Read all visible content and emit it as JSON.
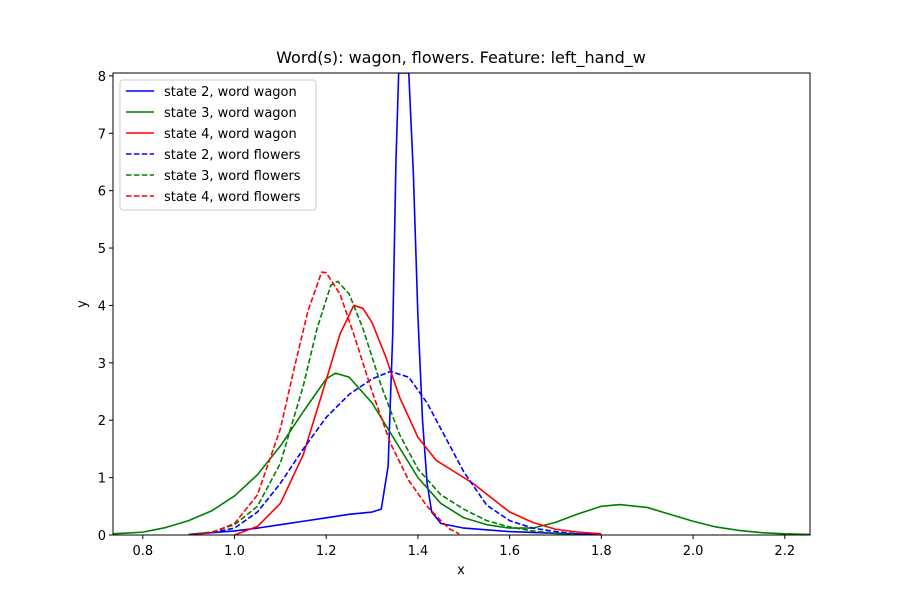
{
  "chart_data": {
    "type": "line",
    "title": "Word(s): wagon, flowers. Feature: left_hand_w",
    "xlabel": "x",
    "ylabel": "y",
    "xlim": [
      0.735,
      2.255
    ],
    "ylim": [
      0,
      8.05
    ],
    "xticks": [
      "0.8",
      "1.0",
      "1.2",
      "1.4",
      "1.6",
      "1.8",
      "2.0",
      "2.2"
    ],
    "yticks": [
      "0",
      "1",
      "2",
      "3",
      "4",
      "5",
      "6",
      "7",
      "8"
    ],
    "grid": false,
    "legend_position": "top-left",
    "series": [
      {
        "name": "state 2, word wagon",
        "color": "#0000ff",
        "style": "solid",
        "points": [
          [
            0.9,
            0.01
          ],
          [
            1.0,
            0.07
          ],
          [
            1.05,
            0.12
          ],
          [
            1.1,
            0.18
          ],
          [
            1.15,
            0.24
          ],
          [
            1.2,
            0.3
          ],
          [
            1.25,
            0.36
          ],
          [
            1.3,
            0.4
          ],
          [
            1.32,
            0.45
          ],
          [
            1.335,
            1.2
          ],
          [
            1.345,
            3.5
          ],
          [
            1.352,
            6.5
          ],
          [
            1.358,
            8.05
          ],
          [
            1.38,
            8.05
          ],
          [
            1.39,
            6.3
          ],
          [
            1.4,
            3.8
          ],
          [
            1.41,
            2.0
          ],
          [
            1.42,
            0.9
          ],
          [
            1.43,
            0.4
          ],
          [
            1.45,
            0.2
          ],
          [
            1.5,
            0.12
          ],
          [
            1.6,
            0.06
          ],
          [
            1.7,
            0.03
          ],
          [
            1.79,
            0.01
          ]
        ]
      },
      {
        "name": "state 3, word wagon",
        "color": "#008000",
        "style": "solid",
        "points": [
          [
            0.735,
            0.02
          ],
          [
            0.8,
            0.05
          ],
          [
            0.85,
            0.13
          ],
          [
            0.9,
            0.25
          ],
          [
            0.95,
            0.42
          ],
          [
            1.0,
            0.68
          ],
          [
            1.05,
            1.05
          ],
          [
            1.1,
            1.55
          ],
          [
            1.15,
            2.15
          ],
          [
            1.2,
            2.72
          ],
          [
            1.22,
            2.82
          ],
          [
            1.25,
            2.75
          ],
          [
            1.3,
            2.3
          ],
          [
            1.35,
            1.65
          ],
          [
            1.4,
            1.0
          ],
          [
            1.45,
            0.55
          ],
          [
            1.5,
            0.3
          ],
          [
            1.55,
            0.18
          ],
          [
            1.6,
            0.12
          ],
          [
            1.65,
            0.12
          ],
          [
            1.7,
            0.22
          ],
          [
            1.75,
            0.37
          ],
          [
            1.8,
            0.5
          ],
          [
            1.84,
            0.53
          ],
          [
            1.9,
            0.48
          ],
          [
            1.95,
            0.36
          ],
          [
            2.0,
            0.24
          ],
          [
            2.05,
            0.14
          ],
          [
            2.1,
            0.08
          ],
          [
            2.15,
            0.04
          ],
          [
            2.2,
            0.02
          ],
          [
            2.255,
            0.01
          ]
        ]
      },
      {
        "name": "state 4, word wagon",
        "color": "#ff0000",
        "style": "solid",
        "points": [
          [
            1.0,
            0.0
          ],
          [
            1.05,
            0.15
          ],
          [
            1.1,
            0.55
          ],
          [
            1.15,
            1.4
          ],
          [
            1.2,
            2.7
          ],
          [
            1.23,
            3.5
          ],
          [
            1.26,
            4.0
          ],
          [
            1.28,
            3.95
          ],
          [
            1.3,
            3.7
          ],
          [
            1.33,
            3.1
          ],
          [
            1.36,
            2.4
          ],
          [
            1.4,
            1.7
          ],
          [
            1.44,
            1.3
          ],
          [
            1.48,
            1.1
          ],
          [
            1.52,
            0.9
          ],
          [
            1.56,
            0.65
          ],
          [
            1.6,
            0.4
          ],
          [
            1.65,
            0.22
          ],
          [
            1.7,
            0.1
          ],
          [
            1.75,
            0.05
          ],
          [
            1.8,
            0.02
          ]
        ]
      },
      {
        "name": "state 2, word flowers",
        "color": "#0000ff",
        "style": "dashed",
        "points": [
          [
            0.9,
            0.01
          ],
          [
            0.95,
            0.04
          ],
          [
            1.0,
            0.12
          ],
          [
            1.05,
            0.4
          ],
          [
            1.1,
            0.9
          ],
          [
            1.15,
            1.5
          ],
          [
            1.2,
            2.05
          ],
          [
            1.25,
            2.45
          ],
          [
            1.3,
            2.72
          ],
          [
            1.34,
            2.85
          ],
          [
            1.38,
            2.75
          ],
          [
            1.42,
            2.3
          ],
          [
            1.46,
            1.7
          ],
          [
            1.5,
            1.1
          ],
          [
            1.55,
            0.52
          ],
          [
            1.6,
            0.25
          ],
          [
            1.65,
            0.12
          ],
          [
            1.7,
            0.06
          ],
          [
            1.75,
            0.02
          ]
        ]
      },
      {
        "name": "state 3, word flowers",
        "color": "#008000",
        "style": "dashed",
        "points": [
          [
            0.9,
            0.01
          ],
          [
            0.95,
            0.05
          ],
          [
            1.0,
            0.18
          ],
          [
            1.05,
            0.5
          ],
          [
            1.1,
            1.25
          ],
          [
            1.15,
            2.6
          ],
          [
            1.18,
            3.6
          ],
          [
            1.21,
            4.35
          ],
          [
            1.225,
            4.42
          ],
          [
            1.25,
            4.2
          ],
          [
            1.28,
            3.6
          ],
          [
            1.32,
            2.6
          ],
          [
            1.36,
            1.75
          ],
          [
            1.4,
            1.15
          ],
          [
            1.45,
            0.7
          ],
          [
            1.5,
            0.45
          ],
          [
            1.55,
            0.25
          ],
          [
            1.6,
            0.14
          ],
          [
            1.65,
            0.07
          ],
          [
            1.7,
            0.03
          ],
          [
            1.75,
            0.01
          ]
        ]
      },
      {
        "name": "state 4, word flowers",
        "color": "#ff0000",
        "style": "dashed",
        "points": [
          [
            0.9,
            0.0
          ],
          [
            0.95,
            0.04
          ],
          [
            1.0,
            0.2
          ],
          [
            1.05,
            0.7
          ],
          [
            1.1,
            1.85
          ],
          [
            1.13,
            2.9
          ],
          [
            1.16,
            3.9
          ],
          [
            1.19,
            4.58
          ],
          [
            1.2,
            4.57
          ],
          [
            1.23,
            4.2
          ],
          [
            1.26,
            3.5
          ],
          [
            1.3,
            2.5
          ],
          [
            1.34,
            1.6
          ],
          [
            1.38,
            0.95
          ],
          [
            1.42,
            0.5
          ],
          [
            1.45,
            0.25
          ],
          [
            1.47,
            0.1
          ],
          [
            1.49,
            0.02
          ]
        ]
      }
    ]
  }
}
